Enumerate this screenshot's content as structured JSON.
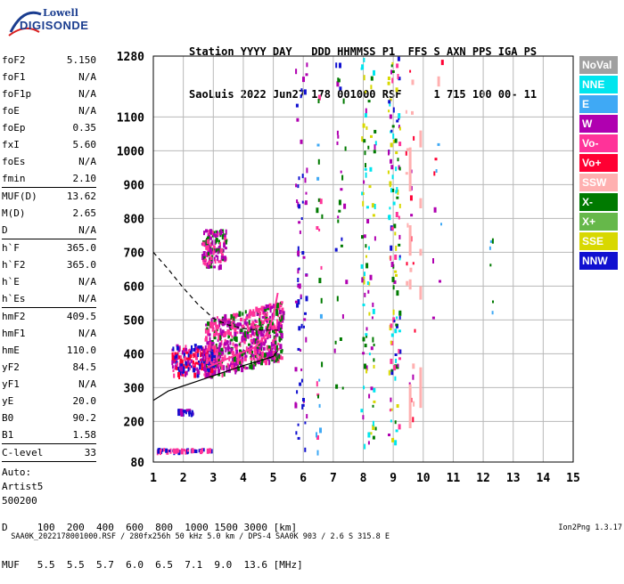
{
  "logo": {
    "top": "Lowell",
    "bottom": "DIGISONDE"
  },
  "header": {
    "line1": "Station YYYY DAY   DDD HHMMSS P1  FFS S AXN PPS IGA PS",
    "line2": "SaoLuis 2022 Jun27 178 001000 RSF     1 715 100 00- 11"
  },
  "params": [
    {
      "k": "foF2",
      "v": "5.150"
    },
    {
      "k": "foF1",
      "v": "N/A"
    },
    {
      "k": "foF1p",
      "v": "N/A"
    },
    {
      "k": "foE",
      "v": "N/A"
    },
    {
      "k": "foEp",
      "v": "0.35"
    },
    {
      "k": "fxI",
      "v": "5.60"
    },
    {
      "k": "foEs",
      "v": "N/A"
    },
    {
      "k": "fmin",
      "v": "2.10"
    },
    {
      "k": "MUF(D)",
      "v": "13.62"
    },
    {
      "k": "M(D)",
      "v": "2.65"
    },
    {
      "k": "D",
      "v": "N/A"
    },
    {
      "k": "h`F",
      "v": "365.0"
    },
    {
      "k": "h`F2",
      "v": "365.0"
    },
    {
      "k": "h`E",
      "v": "N/A"
    },
    {
      "k": "h`Es",
      "v": "N/A"
    },
    {
      "k": "hmF2",
      "v": "409.5"
    },
    {
      "k": "hmF1",
      "v": "N/A"
    },
    {
      "k": "hmE",
      "v": "110.0"
    },
    {
      "k": "yF2",
      "v": "84.5"
    },
    {
      "k": "yF1",
      "v": "N/A"
    },
    {
      "k": "yE",
      "v": "20.0"
    },
    {
      "k": "B0",
      "v": "90.2"
    },
    {
      "k": "B1",
      "v": "1.58"
    },
    {
      "k": "C-level",
      "v": "33"
    }
  ],
  "auto": {
    "l1": "Auto:",
    "l2": "Artist5",
    "l3": "500200"
  },
  "legend": [
    {
      "name": "NoVal",
      "color": "#a0a0a0"
    },
    {
      "name": "NNE",
      "color": "#00e5ee"
    },
    {
      "name": "E",
      "color": "#3fa9f5"
    },
    {
      "name": "W",
      "color": "#b000b0"
    },
    {
      "name": "Vo-",
      "color": "#ff3399"
    },
    {
      "name": "Vo+",
      "color": "#ff0033"
    },
    {
      "name": "SSW",
      "color": "#ffb0b0"
    },
    {
      "name": "X-",
      "color": "#007a00"
    },
    {
      "name": "X+",
      "color": "#66b84a"
    },
    {
      "name": "SSE",
      "color": "#d8d800"
    },
    {
      "name": "NNW",
      "color": "#1010d0"
    }
  ],
  "dtable": {
    "line1": "D     100  200  400  600  800  1000 1500 3000 [km]",
    "line2": "MUF   5.5  5.5  5.7  6.0  6.5  7.1  9.0  13.6 [MHz]"
  },
  "footer": {
    "left": "SAA0K_2022178001000.RSF / 280fx256h 50 kHz 5.0 km / DPS-4 SAA0K 903 / 2.6 S 315.8 E",
    "right": "Ion2Png 1.3.17"
  },
  "chart_data": {
    "type": "scatter",
    "title": "",
    "xlabel": "",
    "ylabel": "",
    "xlim": [
      1,
      15
    ],
    "ylim": [
      80,
      1280
    ],
    "x_ticks": [
      "1",
      "2",
      "3",
      "4",
      "5",
      "6",
      "7",
      "8",
      "9",
      "10",
      "11",
      "12",
      "13",
      "14",
      "15"
    ],
    "y_ticks": [
      "80",
      "200",
      "300",
      "400",
      "500",
      "600",
      "700",
      "800",
      "900",
      "1000",
      "1100",
      "1280"
    ],
    "grid": true,
    "profile_solid": [
      [
        1.0,
        262
      ],
      [
        1.5,
        290
      ],
      [
        2.0,
        305
      ],
      [
        2.5,
        320
      ],
      [
        3.0,
        335
      ],
      [
        3.5,
        350
      ],
      [
        4.0,
        365
      ],
      [
        4.5,
        378
      ],
      [
        5.0,
        392
      ],
      [
        5.15,
        409
      ]
    ],
    "profile_dashed": [
      [
        1.0,
        700
      ],
      [
        1.5,
        650
      ],
      [
        2.0,
        595
      ],
      [
        2.5,
        545
      ],
      [
        3.0,
        505
      ],
      [
        3.5,
        485
      ],
      [
        4.0,
        475
      ],
      [
        4.5,
        470
      ],
      [
        5.0,
        470
      ],
      [
        5.15,
        470
      ]
    ],
    "trace_curve": [
      [
        2.8,
        360
      ],
      [
        3.2,
        375
      ],
      [
        3.6,
        390
      ],
      [
        4.0,
        405
      ],
      [
        4.4,
        420
      ],
      [
        4.8,
        460
      ],
      [
        5.0,
        510
      ],
      [
        5.15,
        580
      ]
    ],
    "clusters": [
      {
        "x": [
          2.7,
          5.3
        ],
        "y": [
          330,
          560
        ],
        "n": 700,
        "colors": [
          "#b000b0",
          "#ff3399",
          "#b000b0",
          "#007a00",
          "#ff3399"
        ]
      },
      {
        "x": [
          1.6,
          3.0
        ],
        "y": [
          340,
          430
        ],
        "n": 220,
        "colors": [
          "#1010d0",
          "#b000b0",
          "#ff3399",
          "#ff0033"
        ]
      },
      {
        "x": [
          2.6,
          3.4
        ],
        "y": [
          660,
          770
        ],
        "n": 140,
        "colors": [
          "#b000b0",
          "#007a00",
          "#ff3399"
        ]
      },
      {
        "x": [
          1.8,
          2.3
        ],
        "y": [
          226,
          238
        ],
        "n": 30,
        "colors": [
          "#1010d0",
          "#b000b0"
        ]
      },
      {
        "x": [
          1.1,
          2.9
        ],
        "y": [
          116,
          122
        ],
        "n": 60,
        "colors": [
          "#1010d0",
          "#ff3399"
        ]
      },
      {
        "x": [
          5.7,
          6.1
        ],
        "y": [
          110,
          1280
        ],
        "n": 70,
        "colors": [
          "#1010d0",
          "#b000b0"
        ]
      },
      {
        "x": [
          7.9,
          8.4
        ],
        "y": [
          130,
          1280
        ],
        "n": 90,
        "colors": [
          "#b000b0",
          "#00e5ee",
          "#007a00",
          "#d8d800"
        ]
      },
      {
        "x": [
          8.8,
          9.2
        ],
        "y": [
          130,
          1280
        ],
        "n": 120,
        "colors": [
          "#b000b0",
          "#ff3399",
          "#00e5ee",
          "#007a00",
          "#d8d800",
          "#1010d0"
        ]
      },
      {
        "x": [
          6.4,
          6.6
        ],
        "y": [
          110,
          1280
        ],
        "n": 25,
        "colors": [
          "#007a00",
          "#3fa9f5",
          "#ff3399"
        ]
      },
      {
        "x": [
          7.0,
          7.4
        ],
        "y": [
          300,
          1280
        ],
        "n": 30,
        "colors": [
          "#1010d0",
          "#b000b0",
          "#007a00"
        ]
      },
      {
        "x": [
          9.4,
          9.7
        ],
        "y": [
          180,
          1250
        ],
        "n": 25,
        "colors": [
          "#b000b0",
          "#ff0033",
          "#ffb0b0"
        ]
      },
      {
        "x": [
          10.3,
          10.6
        ],
        "y": [
          450,
          1270
        ],
        "n": 10,
        "colors": [
          "#3fa9f5",
          "#ff0033",
          "#b000b0"
        ]
      },
      {
        "x": [
          12.2,
          12.3
        ],
        "y": [
          470,
          820
        ],
        "n": 6,
        "colors": [
          "#007a00",
          "#3fa9f5"
        ]
      }
    ],
    "ssw_bars": [
      {
        "x": 9.55,
        "y1": 880,
        "y2": 1010
      },
      {
        "x": 9.55,
        "y1": 690,
        "y2": 780
      },
      {
        "x": 9.55,
        "y1": 590,
        "y2": 620
      },
      {
        "x": 9.55,
        "y1": 180,
        "y2": 310
      },
      {
        "x": 9.9,
        "y1": 1010,
        "y2": 1060
      },
      {
        "x": 9.9,
        "y1": 830,
        "y2": 860
      },
      {
        "x": 9.9,
        "y1": 690,
        "y2": 710
      },
      {
        "x": 9.9,
        "y1": 560,
        "y2": 600
      },
      {
        "x": 9.9,
        "y1": 240,
        "y2": 360
      },
      {
        "x": 10.5,
        "y1": 1190,
        "y2": 1220
      }
    ]
  }
}
